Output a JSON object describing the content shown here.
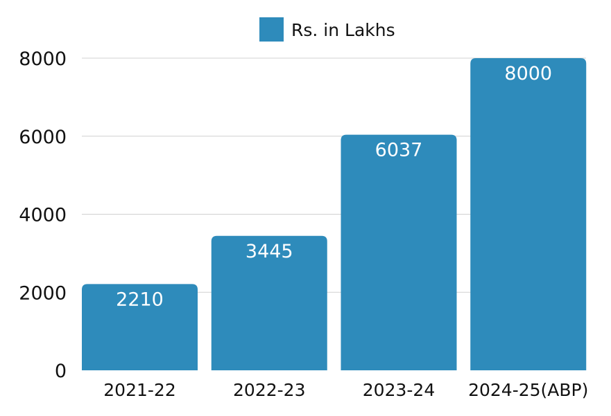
{
  "chart_data": {
    "type": "bar",
    "categories": [
      "2021-22",
      "2022-23",
      "2023-24",
      "2024-25(ABP)"
    ],
    "series": [
      {
        "name": "Rs. in Lakhs",
        "values": [
          2210,
          3445,
          6037,
          8000
        ],
        "data_labels": [
          "2210",
          "3445",
          "6037",
          "8000"
        ]
      }
    ],
    "ylim": [
      0,
      8000
    ],
    "y_ticks": [
      0,
      2000,
      4000,
      6000,
      8000
    ],
    "y_tick_labels": [
      "0",
      "2000",
      "4000",
      "6000",
      "8000"
    ],
    "grid": true,
    "legend_position": "top-center",
    "colors": {
      "bar": "#2e8bbb",
      "grid": "#d0d0d0",
      "text": "#111111",
      "value_label": "#ffffff"
    }
  }
}
